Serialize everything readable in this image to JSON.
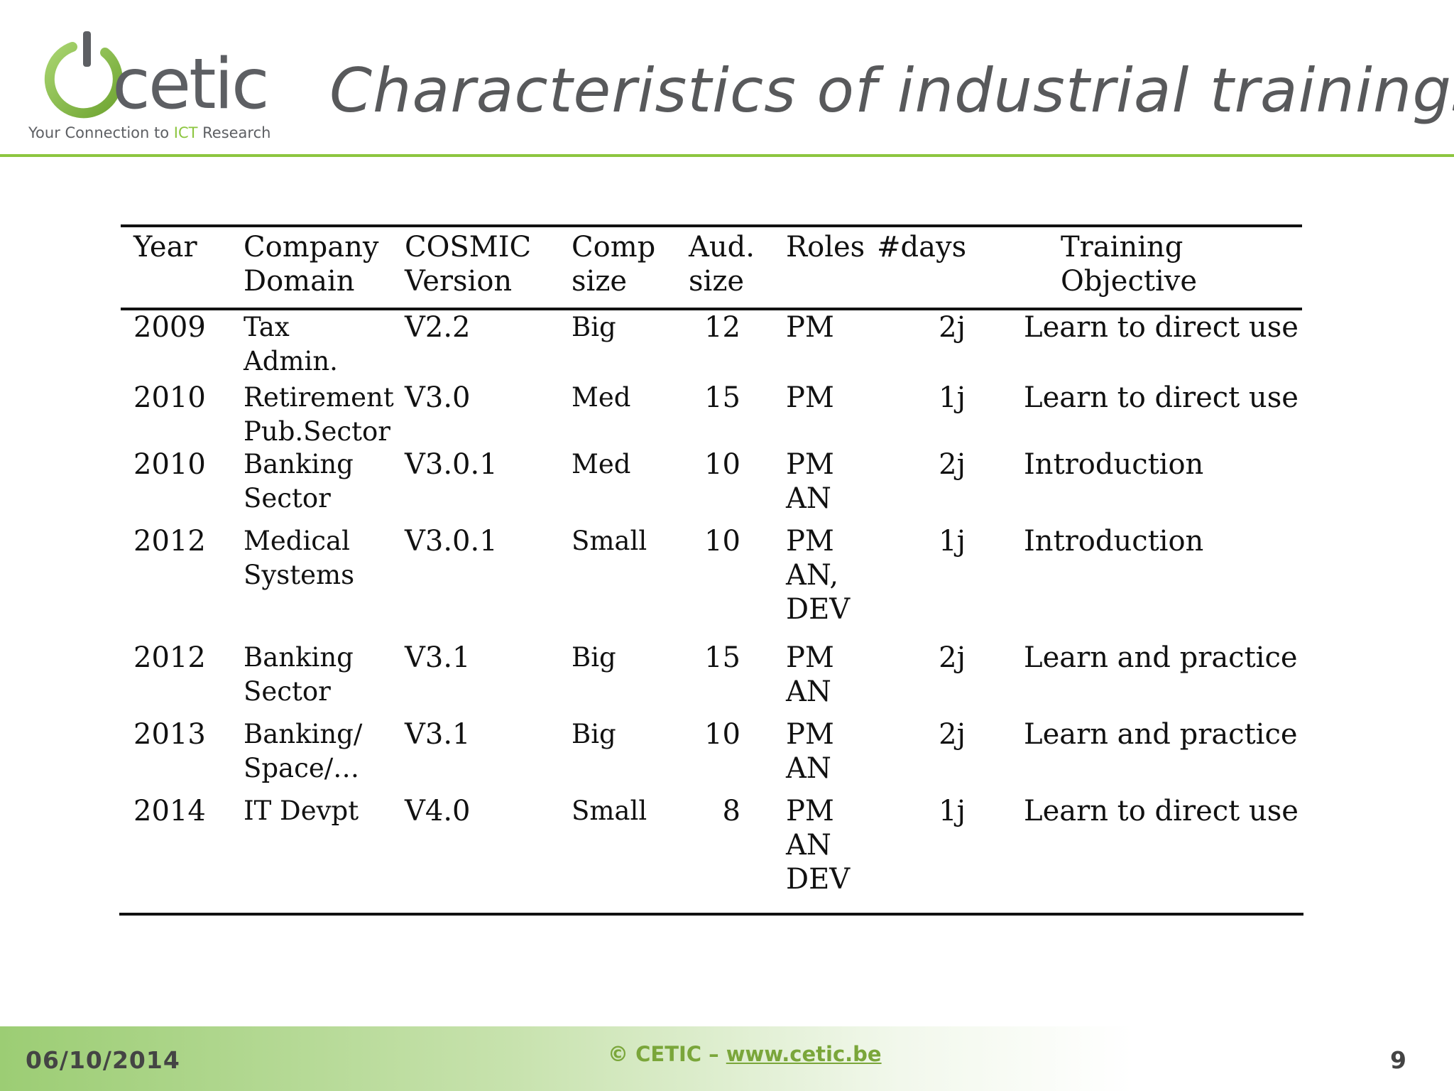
{
  "logo": {
    "word": "cetic",
    "tagline_pre": "Your Connection to ",
    "tagline_ict": "ICT",
    "tagline_post": " Research"
  },
  "title": "Characteristics of industrial trainings",
  "table": {
    "headers": [
      {
        "key": "year",
        "text": "Year"
      },
      {
        "key": "domain",
        "text": "Company\nDomain"
      },
      {
        "key": "version",
        "text": "COSMIC\nVersion"
      },
      {
        "key": "comp",
        "text": "Comp\nsize"
      },
      {
        "key": "aud",
        "text": "Aud.\nsize"
      },
      {
        "key": "roles",
        "text": "Roles"
      },
      {
        "key": "days",
        "text": "#days"
      },
      {
        "key": "objective",
        "text": "Training\nObjective"
      }
    ],
    "rows": [
      {
        "year": "2009",
        "domain": "Tax\nAdmin.",
        "version": "V2.2",
        "comp": "Big",
        "aud": "12",
        "roles": "PM",
        "days": "2j",
        "objective": "Learn to direct use"
      },
      {
        "year": "2010",
        "domain": "Retirement\nPub.Sector",
        "version": "V3.0",
        "comp": "Med",
        "aud": "15",
        "roles": "PM",
        "days": "1j",
        "objective": "Learn to direct use"
      },
      {
        "year": "2010",
        "domain": "Banking\nSector",
        "version": "V3.0.1",
        "comp": "Med",
        "aud": "10",
        "roles": "PM\nAN",
        "days": "2j",
        "objective": "Introduction"
      },
      {
        "year": "2012",
        "domain": "Medical\nSystems",
        "version": "V3.0.1",
        "comp": "Small",
        "aud": "10",
        "roles": "PM\nAN,\nDEV",
        "days": "1j",
        "objective": "Introduction"
      },
      {
        "year": "2012",
        "domain": "Banking\nSector",
        "version": "V3.1",
        "comp": "Big",
        "aud": "15",
        "roles": "PM\nAN",
        "days": "2j",
        "objective": "Learn and practice"
      },
      {
        "year": "2013",
        "domain": "Banking/\nSpace/…",
        "version": "V3.1",
        "comp": "Big",
        "aud": "10",
        "roles": "PM\nAN",
        "days": "2j",
        "objective": "Learn and practice"
      },
      {
        "year": "2014",
        "domain": "IT Devpt",
        "version": "V4.0",
        "comp": "Small",
        "aud": "8",
        "roles": "PM\nAN\nDEV",
        "days": "1j",
        "objective": "Learn to direct use"
      }
    ]
  },
  "footer": {
    "date": "06/10/2014",
    "copyright": "© CETIC – ",
    "link": "www.cetic.be",
    "page": "9"
  }
}
